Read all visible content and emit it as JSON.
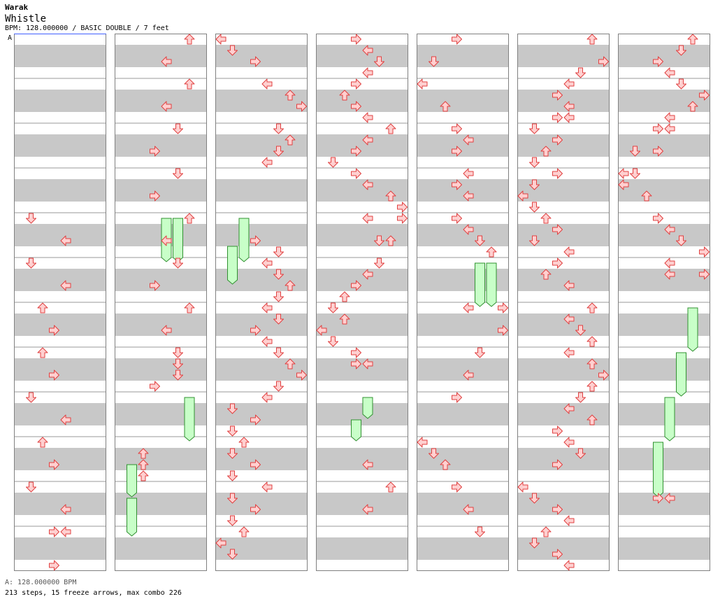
{
  "header": {
    "artist": "Warak",
    "song_title": "Whistle",
    "info_line": "BPM: 128.000000 / BASIC DOUBLE / 7 feet"
  },
  "marker_label": "A",
  "footer": {
    "bpm_line": "A: 128.000000 BPM",
    "stats_line": "213 steps, 15 freeze arrows, max combo 226"
  },
  "colors": {
    "stripe": "#c8c8c8",
    "border": "#808080",
    "arrow_fill": "#ffd0d0",
    "arrow_stroke": "#e04040",
    "freeze_fill": "#c8ffc8",
    "freeze_stroke": "#309030",
    "marker_line": "#4060ff"
  },
  "chart_data": {
    "type": "table",
    "title": "Whistle",
    "chart_mode": "BASIC DOUBLE",
    "difficulty_feet": 7,
    "bpm": 128.0,
    "lanes": [
      "P1-L",
      "P1-D",
      "P1-U",
      "P1-R",
      "P2-L",
      "P2-D",
      "P2-U",
      "P2-R"
    ],
    "rows_per_column": 48,
    "freezes": [
      {
        "column": 1,
        "lane": 4,
        "start": 16,
        "end": 19.5
      },
      {
        "column": 1,
        "lane": 5,
        "start": 16,
        "end": 19.5
      },
      {
        "column": 1,
        "lane": 6,
        "start": 32,
        "end": 35.5
      },
      {
        "column": 1,
        "lane": 1,
        "start": 38,
        "end": 40.5
      },
      {
        "column": 1,
        "lane": 1,
        "start": 41,
        "end": 44
      },
      {
        "column": 2,
        "lane": 2,
        "start": 16,
        "end": 19.5
      },
      {
        "column": 2,
        "lane": 1,
        "start": 18.5,
        "end": 21.5
      },
      {
        "column": 4,
        "lane": 5,
        "start": 20,
        "end": 23.5
      },
      {
        "column": 4,
        "lane": 6,
        "start": 20,
        "end": 23.5
      },
      {
        "column": 6,
        "lane": 6,
        "start": 24,
        "end": 27.5
      },
      {
        "column": 6,
        "lane": 5,
        "start": 28,
        "end": 31.5
      },
      {
        "column": 6,
        "lane": 4,
        "start": 32,
        "end": 35.5
      },
      {
        "column": 6,
        "lane": 3,
        "start": 36,
        "end": 40.5
      },
      {
        "column": 3,
        "lane": 4,
        "start": 32,
        "end": 33.5
      },
      {
        "column": 3,
        "lane": 3,
        "start": 34,
        "end": 35.5
      }
    ],
    "notes": [
      {
        "c": 0,
        "l": 1,
        "r": 16
      },
      {
        "c": 0,
        "l": 4,
        "r": 18
      },
      {
        "c": 0,
        "l": 1,
        "r": 20
      },
      {
        "c": 0,
        "l": 4,
        "r": 22
      },
      {
        "c": 0,
        "l": 2,
        "r": 24
      },
      {
        "c": 0,
        "l": 3,
        "r": 26
      },
      {
        "c": 0,
        "l": 2,
        "r": 28
      },
      {
        "c": 0,
        "l": 3,
        "r": 30
      },
      {
        "c": 0,
        "l": 1,
        "r": 32
      },
      {
        "c": 0,
        "l": 4,
        "r": 34
      },
      {
        "c": 0,
        "l": 2,
        "r": 36
      },
      {
        "c": 0,
        "l": 3,
        "r": 38
      },
      {
        "c": 0,
        "l": 1,
        "r": 40
      },
      {
        "c": 0,
        "l": 4,
        "r": 42
      },
      {
        "c": 0,
        "l": 3,
        "r": 44
      },
      {
        "c": 0,
        "l": 4,
        "r": 44
      },
      {
        "c": 0,
        "l": 3,
        "r": 47
      },
      {
        "c": 1,
        "l": 6,
        "r": 0
      },
      {
        "c": 1,
        "l": 4,
        "r": 2
      },
      {
        "c": 1,
        "l": 6,
        "r": 4
      },
      {
        "c": 1,
        "l": 4,
        "r": 6
      },
      {
        "c": 1,
        "l": 5,
        "r": 8
      },
      {
        "c": 1,
        "l": 3,
        "r": 10
      },
      {
        "c": 1,
        "l": 5,
        "r": 12
      },
      {
        "c": 1,
        "l": 3,
        "r": 14
      },
      {
        "c": 1,
        "l": 6,
        "r": 16
      },
      {
        "c": 1,
        "l": 4,
        "r": 18
      },
      {
        "c": 1,
        "l": 5,
        "r": 20
      },
      {
        "c": 1,
        "l": 3,
        "r": 22
      },
      {
        "c": 1,
        "l": 6,
        "r": 24
      },
      {
        "c": 1,
        "l": 4,
        "r": 26
      },
      {
        "c": 1,
        "l": 5,
        "r": 28
      },
      {
        "c": 1,
        "l": 5,
        "r": 29
      },
      {
        "c": 1,
        "l": 5,
        "r": 30
      },
      {
        "c": 1,
        "l": 3,
        "r": 31
      },
      {
        "c": 1,
        "l": 2,
        "r": 37
      },
      {
        "c": 1,
        "l": 2,
        "r": 38
      },
      {
        "c": 1,
        "l": 2,
        "r": 39
      },
      {
        "c": 2,
        "l": 0,
        "r": 0
      },
      {
        "c": 2,
        "l": 1,
        "r": 1
      },
      {
        "c": 2,
        "l": 3,
        "r": 2
      },
      {
        "c": 2,
        "l": 4,
        "r": 4
      },
      {
        "c": 2,
        "l": 6,
        "r": 5
      },
      {
        "c": 2,
        "l": 7,
        "r": 6
      },
      {
        "c": 2,
        "l": 5,
        "r": 8
      },
      {
        "c": 2,
        "l": 6,
        "r": 9
      },
      {
        "c": 2,
        "l": 5,
        "r": 10
      },
      {
        "c": 2,
        "l": 4,
        "r": 11
      },
      {
        "c": 2,
        "l": 3,
        "r": 18
      },
      {
        "c": 2,
        "l": 5,
        "r": 19
      },
      {
        "c": 2,
        "l": 4,
        "r": 20
      },
      {
        "c": 2,
        "l": 5,
        "r": 21
      },
      {
        "c": 2,
        "l": 6,
        "r": 22
      },
      {
        "c": 2,
        "l": 5,
        "r": 23
      },
      {
        "c": 2,
        "l": 4,
        "r": 24
      },
      {
        "c": 2,
        "l": 5,
        "r": 25
      },
      {
        "c": 2,
        "l": 3,
        "r": 26
      },
      {
        "c": 2,
        "l": 4,
        "r": 27
      },
      {
        "c": 2,
        "l": 5,
        "r": 28
      },
      {
        "c": 2,
        "l": 6,
        "r": 29
      },
      {
        "c": 2,
        "l": 7,
        "r": 30
      },
      {
        "c": 2,
        "l": 5,
        "r": 31
      },
      {
        "c": 2,
        "l": 4,
        "r": 32
      },
      {
        "c": 2,
        "l": 1,
        "r": 33
      },
      {
        "c": 2,
        "l": 3,
        "r": 34
      },
      {
        "c": 2,
        "l": 1,
        "r": 35
      },
      {
        "c": 2,
        "l": 2,
        "r": 36
      },
      {
        "c": 2,
        "l": 1,
        "r": 37
      },
      {
        "c": 2,
        "l": 3,
        "r": 38
      },
      {
        "c": 2,
        "l": 1,
        "r": 39
      },
      {
        "c": 2,
        "l": 4,
        "r": 40
      },
      {
        "c": 2,
        "l": 1,
        "r": 41
      },
      {
        "c": 2,
        "l": 3,
        "r": 42
      },
      {
        "c": 2,
        "l": 1,
        "r": 43
      },
      {
        "c": 2,
        "l": 2,
        "r": 44
      },
      {
        "c": 2,
        "l": 0,
        "r": 45
      },
      {
        "c": 2,
        "l": 1,
        "r": 46
      },
      {
        "c": 3,
        "l": 3,
        "r": 0
      },
      {
        "c": 3,
        "l": 4,
        "r": 1
      },
      {
        "c": 3,
        "l": 5,
        "r": 2
      },
      {
        "c": 3,
        "l": 4,
        "r": 3
      },
      {
        "c": 3,
        "l": 3,
        "r": 4
      },
      {
        "c": 3,
        "l": 2,
        "r": 5
      },
      {
        "c": 3,
        "l": 3,
        "r": 6
      },
      {
        "c": 3,
        "l": 4,
        "r": 7
      },
      {
        "c": 3,
        "l": 6,
        "r": 8
      },
      {
        "c": 3,
        "l": 4,
        "r": 9
      },
      {
        "c": 3,
        "l": 3,
        "r": 10
      },
      {
        "c": 3,
        "l": 1,
        "r": 11
      },
      {
        "c": 3,
        "l": 3,
        "r": 12
      },
      {
        "c": 3,
        "l": 4,
        "r": 13
      },
      {
        "c": 3,
        "l": 6,
        "r": 14
      },
      {
        "c": 3,
        "l": 7,
        "r": 15
      },
      {
        "c": 3,
        "l": 4,
        "r": 16
      },
      {
        "c": 3,
        "l": 7,
        "r": 16
      },
      {
        "c": 3,
        "l": 5,
        "r": 18
      },
      {
        "c": 3,
        "l": 6,
        "r": 18
      },
      {
        "c": 3,
        "l": 5,
        "r": 20
      },
      {
        "c": 3,
        "l": 4,
        "r": 21
      },
      {
        "c": 3,
        "l": 3,
        "r": 22
      },
      {
        "c": 3,
        "l": 2,
        "r": 23
      },
      {
        "c": 3,
        "l": 1,
        "r": 24
      },
      {
        "c": 3,
        "l": 2,
        "r": 25
      },
      {
        "c": 3,
        "l": 0,
        "r": 26
      },
      {
        "c": 3,
        "l": 1,
        "r": 27
      },
      {
        "c": 3,
        "l": 3,
        "r": 28
      },
      {
        "c": 3,
        "l": 3,
        "r": 29
      },
      {
        "c": 3,
        "l": 4,
        "r": 29
      },
      {
        "c": 3,
        "l": 4,
        "r": 38
      },
      {
        "c": 3,
        "l": 6,
        "r": 40
      },
      {
        "c": 3,
        "l": 4,
        "r": 42
      },
      {
        "c": 4,
        "l": 3,
        "r": 0
      },
      {
        "c": 4,
        "l": 1,
        "r": 2
      },
      {
        "c": 4,
        "l": 0,
        "r": 4
      },
      {
        "c": 4,
        "l": 2,
        "r": 6
      },
      {
        "c": 4,
        "l": 3,
        "r": 8
      },
      {
        "c": 4,
        "l": 4,
        "r": 9
      },
      {
        "c": 4,
        "l": 3,
        "r": 10
      },
      {
        "c": 4,
        "l": 4,
        "r": 12
      },
      {
        "c": 4,
        "l": 3,
        "r": 13
      },
      {
        "c": 4,
        "l": 4,
        "r": 14
      },
      {
        "c": 4,
        "l": 3,
        "r": 16
      },
      {
        "c": 4,
        "l": 4,
        "r": 17
      },
      {
        "c": 4,
        "l": 5,
        "r": 18
      },
      {
        "c": 4,
        "l": 6,
        "r": 19
      },
      {
        "c": 4,
        "l": 4,
        "r": 24
      },
      {
        "c": 4,
        "l": 7,
        "r": 24
      },
      {
        "c": 4,
        "l": 7,
        "r": 26
      },
      {
        "c": 4,
        "l": 5,
        "r": 28
      },
      {
        "c": 4,
        "l": 4,
        "r": 30
      },
      {
        "c": 4,
        "l": 3,
        "r": 32
      },
      {
        "c": 4,
        "l": 0,
        "r": 36
      },
      {
        "c": 4,
        "l": 1,
        "r": 37
      },
      {
        "c": 4,
        "l": 2,
        "r": 38
      },
      {
        "c": 4,
        "l": 3,
        "r": 40
      },
      {
        "c": 4,
        "l": 4,
        "r": 42
      },
      {
        "c": 4,
        "l": 5,
        "r": 44
      },
      {
        "c": 5,
        "l": 6,
        "r": 0
      },
      {
        "c": 5,
        "l": 7,
        "r": 2
      },
      {
        "c": 5,
        "l": 5,
        "r": 3
      },
      {
        "c": 5,
        "l": 4,
        "r": 4
      },
      {
        "c": 5,
        "l": 3,
        "r": 5
      },
      {
        "c": 5,
        "l": 4,
        "r": 6
      },
      {
        "c": 5,
        "l": 3,
        "r": 7
      },
      {
        "c": 5,
        "l": 4,
        "r": 7
      },
      {
        "c": 5,
        "l": 1,
        "r": 8
      },
      {
        "c": 5,
        "l": 3,
        "r": 9
      },
      {
        "c": 5,
        "l": 2,
        "r": 10
      },
      {
        "c": 5,
        "l": 1,
        "r": 11
      },
      {
        "c": 5,
        "l": 3,
        "r": 12
      },
      {
        "c": 5,
        "l": 1,
        "r": 13
      },
      {
        "c": 5,
        "l": 0,
        "r": 14
      },
      {
        "c": 5,
        "l": 1,
        "r": 15
      },
      {
        "c": 5,
        "l": 2,
        "r": 16
      },
      {
        "c": 5,
        "l": 3,
        "r": 17
      },
      {
        "c": 5,
        "l": 1,
        "r": 18
      },
      {
        "c": 5,
        "l": 4,
        "r": 19
      },
      {
        "c": 5,
        "l": 3,
        "r": 20
      },
      {
        "c": 5,
        "l": 2,
        "r": 21
      },
      {
        "c": 5,
        "l": 4,
        "r": 22
      },
      {
        "c": 5,
        "l": 6,
        "r": 24
      },
      {
        "c": 5,
        "l": 4,
        "r": 25
      },
      {
        "c": 5,
        "l": 5,
        "r": 26
      },
      {
        "c": 5,
        "l": 6,
        "r": 27
      },
      {
        "c": 5,
        "l": 4,
        "r": 28
      },
      {
        "c": 5,
        "l": 6,
        "r": 29
      },
      {
        "c": 5,
        "l": 7,
        "r": 30
      },
      {
        "c": 5,
        "l": 6,
        "r": 31
      },
      {
        "c": 5,
        "l": 5,
        "r": 32
      },
      {
        "c": 5,
        "l": 4,
        "r": 33
      },
      {
        "c": 5,
        "l": 6,
        "r": 34
      },
      {
        "c": 5,
        "l": 3,
        "r": 35
      },
      {
        "c": 5,
        "l": 4,
        "r": 36
      },
      {
        "c": 5,
        "l": 5,
        "r": 37
      },
      {
        "c": 5,
        "l": 3,
        "r": 38
      },
      {
        "c": 5,
        "l": 0,
        "r": 40
      },
      {
        "c": 5,
        "l": 1,
        "r": 41
      },
      {
        "c": 5,
        "l": 3,
        "r": 42
      },
      {
        "c": 5,
        "l": 4,
        "r": 43
      },
      {
        "c": 5,
        "l": 2,
        "r": 44
      },
      {
        "c": 5,
        "l": 1,
        "r": 45
      },
      {
        "c": 5,
        "l": 3,
        "r": 46
      },
      {
        "c": 5,
        "l": 4,
        "r": 47
      },
      {
        "c": 6,
        "l": 6,
        "r": 0
      },
      {
        "c": 6,
        "l": 5,
        "r": 1
      },
      {
        "c": 6,
        "l": 3,
        "r": 2
      },
      {
        "c": 6,
        "l": 4,
        "r": 3
      },
      {
        "c": 6,
        "l": 5,
        "r": 4
      },
      {
        "c": 6,
        "l": 7,
        "r": 5
      },
      {
        "c": 6,
        "l": 6,
        "r": 6
      },
      {
        "c": 6,
        "l": 4,
        "r": 7
      },
      {
        "c": 6,
        "l": 3,
        "r": 8
      },
      {
        "c": 6,
        "l": 4,
        "r": 8
      },
      {
        "c": 6,
        "l": 1,
        "r": 10
      },
      {
        "c": 6,
        "l": 3,
        "r": 10
      },
      {
        "c": 6,
        "l": 0,
        "r": 12
      },
      {
        "c": 6,
        "l": 1,
        "r": 12
      },
      {
        "c": 6,
        "l": 0,
        "r": 13
      },
      {
        "c": 6,
        "l": 2,
        "r": 14
      },
      {
        "c": 6,
        "l": 3,
        "r": 16
      },
      {
        "c": 6,
        "l": 4,
        "r": 17
      },
      {
        "c": 6,
        "l": 5,
        "r": 18
      },
      {
        "c": 6,
        "l": 7,
        "r": 19
      },
      {
        "c": 6,
        "l": 4,
        "r": 20
      },
      {
        "c": 6,
        "l": 4,
        "r": 21
      },
      {
        "c": 6,
        "l": 7,
        "r": 21
      },
      {
        "c": 6,
        "l": 3,
        "r": 41
      },
      {
        "c": 6,
        "l": 4,
        "r": 41
      }
    ]
  }
}
